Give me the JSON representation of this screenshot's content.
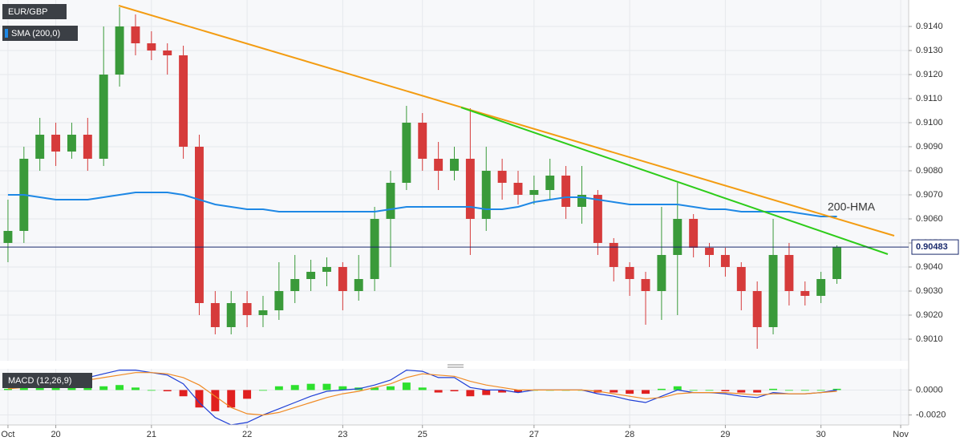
{
  "chart_data": [
    {
      "type": "candlestick",
      "title": "EUR/GBP",
      "categories": [
        "Oct",
        null,
        null,
        "20",
        null,
        null,
        null,
        null,
        null,
        "21",
        null,
        null,
        null,
        null,
        null,
        "22",
        null,
        null,
        null,
        null,
        null,
        "23",
        null,
        null,
        null,
        null,
        "25",
        null,
        null,
        null,
        null,
        null,
        null,
        "27",
        null,
        null,
        null,
        null,
        null,
        "28",
        null,
        null,
        null,
        null,
        null,
        "29",
        null,
        null,
        null,
        null,
        null,
        "30",
        null,
        null,
        null,
        null,
        "Nov"
      ],
      "open": [
        0.905,
        0.9055,
        0.9085,
        0.9095,
        0.9088,
        0.9095,
        0.9085,
        0.912,
        0.914,
        0.9133,
        0.913,
        0.9128,
        0.909,
        0.9025,
        0.9015,
        0.9025,
        0.902,
        0.9022,
        0.903,
        0.9035,
        0.9038,
        0.904,
        0.903,
        0.9035,
        0.906,
        0.9075,
        0.91,
        0.9085,
        0.908,
        0.9085,
        0.906,
        0.908,
        0.9075,
        0.907,
        0.9072,
        0.9078,
        0.9065,
        0.907,
        0.905,
        0.904,
        0.9035,
        0.903,
        0.9045,
        0.906,
        0.9048,
        0.9045,
        0.904,
        0.903,
        0.9015,
        0.9045,
        0.903,
        0.9028,
        0.9035,
        null,
        null,
        null,
        null
      ],
      "high": [
        0.9068,
        0.909,
        0.9102,
        0.91,
        0.91,
        0.9102,
        0.914,
        0.9148,
        0.9145,
        0.9138,
        0.9133,
        0.9132,
        0.9095,
        0.903,
        0.903,
        0.903,
        0.9028,
        0.9042,
        0.9045,
        0.9043,
        0.9044,
        0.9042,
        0.9045,
        0.9065,
        0.908,
        0.9107,
        0.9104,
        0.9092,
        0.909,
        0.9106,
        0.909,
        0.9085,
        0.908,
        0.9078,
        0.9085,
        0.9082,
        0.9082,
        0.9072,
        0.9052,
        0.9042,
        0.9038,
        0.9065,
        0.9075,
        0.9062,
        0.905,
        0.9048,
        0.9042,
        0.9034,
        0.906,
        0.905,
        0.9034,
        0.9038,
        0.9049,
        null,
        null,
        null,
        null
      ],
      "low": [
        0.9042,
        0.905,
        0.908,
        0.9082,
        0.9085,
        0.908,
        0.9082,
        0.9115,
        0.9128,
        0.9126,
        0.912,
        0.9085,
        0.902,
        0.9012,
        0.9012,
        0.9015,
        0.9015,
        0.9018,
        0.9025,
        0.903,
        0.9032,
        0.9022,
        0.9026,
        0.903,
        0.904,
        0.9072,
        0.908,
        0.9072,
        0.9076,
        0.9045,
        0.9055,
        0.9068,
        0.9066,
        0.9066,
        0.9068,
        0.906,
        0.9058,
        0.9045,
        0.9034,
        0.9028,
        0.9016,
        0.9018,
        0.902,
        0.9044,
        0.904,
        0.9036,
        0.9022,
        0.9006,
        0.9012,
        0.9024,
        0.9024,
        0.9025,
        0.9033,
        null,
        null,
        null,
        null
      ],
      "close": [
        0.9055,
        0.9085,
        0.9095,
        0.9088,
        0.9095,
        0.9085,
        0.912,
        0.914,
        0.9133,
        0.913,
        0.9128,
        0.909,
        0.9025,
        0.9015,
        0.9025,
        0.902,
        0.9022,
        0.903,
        0.9035,
        0.9038,
        0.904,
        0.903,
        0.9035,
        0.906,
        0.9075,
        0.91,
        0.9085,
        0.908,
        0.9085,
        0.906,
        0.908,
        0.9075,
        0.907,
        0.9072,
        0.9078,
        0.9065,
        0.907,
        0.905,
        0.904,
        0.9035,
        0.903,
        0.9045,
        0.906,
        0.9048,
        0.9045,
        0.904,
        0.903,
        0.9015,
        0.9045,
        0.903,
        0.9028,
        0.9035,
        0.90483,
        null,
        null,
        null,
        null
      ],
      "up_color": "#3a9a3a",
      "down_color": "#d63b3b",
      "series": [
        {
          "name": "SMA (200,0)",
          "color": "#1e88e5",
          "values": [
            0.907,
            0.907,
            0.9069,
            0.9068,
            0.9068,
            0.9068,
            0.9069,
            0.907,
            0.9071,
            0.9071,
            0.9071,
            0.907,
            0.9068,
            0.9066,
            0.9065,
            0.9064,
            0.9064,
            0.9063,
            0.9063,
            0.9063,
            0.9063,
            0.9063,
            0.9063,
            0.9063,
            0.9064,
            0.9065,
            0.9065,
            0.9065,
            0.9065,
            0.9065,
            0.9064,
            0.9064,
            0.9065,
            0.9067,
            0.9068,
            0.9069,
            0.9069,
            0.9068,
            0.9067,
            0.9066,
            0.9066,
            0.9066,
            0.9066,
            0.9065,
            0.9064,
            0.9064,
            0.9063,
            0.9063,
            0.9063,
            0.9063,
            0.9062,
            0.9061,
            0.9061,
            null,
            null,
            null,
            null
          ]
        }
      ],
      "annotations": [
        "200-HMA"
      ],
      "current_price": 0.90483,
      "ylim": [
        0.9001,
        0.9151
      ],
      "yticks": [
        {
          "value": 0.901,
          "label": "0.9010"
        },
        {
          "value": 0.902,
          "label": "0.9020"
        },
        {
          "value": 0.903,
          "label": "0.9030"
        },
        {
          "value": 0.904,
          "label": "0.9040"
        },
        {
          "value": 0.905,
          "label": "0.9050"
        },
        {
          "value": 0.906,
          "label": "0.9060"
        },
        {
          "value": 0.907,
          "label": "0.9070"
        },
        {
          "value": 0.908,
          "label": "0.9080"
        },
        {
          "value": 0.909,
          "label": "0.9090"
        },
        {
          "value": 0.91,
          "label": "0.9100"
        },
        {
          "value": 0.911,
          "label": "0.9110"
        },
        {
          "value": 0.912,
          "label": "0.9120"
        },
        {
          "value": 0.913,
          "label": "0.9130"
        },
        {
          "value": 0.914,
          "label": "0.9140"
        }
      ],
      "grid": true
    },
    {
      "type": "macd",
      "title": "MACD (12,26,9)",
      "macd": {
        "color": "#1f3fd6",
        "values": [
          0.0002,
          0.0004,
          0.0006,
          0.0008,
          0.0009,
          0.001,
          0.0013,
          0.0016,
          0.0016,
          0.0014,
          0.0012,
          0.0005,
          -0.001,
          -0.0022,
          -0.0028,
          -0.0026,
          -0.002,
          -0.0015,
          -0.001,
          -0.0005,
          -0.0001,
          0,
          0.0001,
          0.0004,
          0.0008,
          0.0016,
          0.0015,
          0.001,
          0.001,
          0.0002,
          0,
          0,
          -0.0002,
          0,
          0,
          0,
          0,
          -0.0003,
          -0.0005,
          -0.0008,
          -0.001,
          -0.0005,
          0,
          -0.0002,
          -0.0002,
          -0.0003,
          -0.0005,
          -0.0006,
          -0.0002,
          -0.0003,
          -0.0003,
          -0.0002,
          0,
          null,
          null,
          null,
          null
        ]
      },
      "signal": {
        "color": "#f08a24",
        "values": [
          0.0001,
          0.0002,
          0.0004,
          0.0006,
          0.0007,
          0.0008,
          0.001,
          0.0012,
          0.0014,
          0.0014,
          0.0013,
          0.001,
          0.0004,
          -0.0005,
          -0.0014,
          -0.0019,
          -0.002,
          -0.0018,
          -0.0014,
          -0.001,
          -0.0006,
          -0.0003,
          -0.0001,
          0.0002,
          0.0005,
          0.001,
          0.0013,
          0.0012,
          0.0011,
          0.0007,
          0.0004,
          0.0002,
          0,
          0,
          0,
          0,
          0,
          -0.0001,
          -0.0003,
          -0.0005,
          -0.0007,
          -0.0006,
          -0.0003,
          -0.0002,
          -0.0002,
          -0.0002,
          -0.0003,
          -0.0004,
          -0.0003,
          -0.0003,
          -0.0003,
          -0.0002,
          -0.0001,
          null,
          null,
          null,
          null
        ]
      },
      "histogram": {
        "up_color": "#2ee02e",
        "down_color": "#e02020",
        "values": [
          0.0001,
          0.0002,
          0.0002,
          0.0002,
          0.0002,
          0.0002,
          0.0003,
          0.0004,
          0.0002,
          0,
          -0.0001,
          -0.0005,
          -0.0014,
          -0.0017,
          -0.0014,
          -0.0007,
          0,
          0.0003,
          0.0004,
          0.0005,
          0.0005,
          0.0003,
          0.0002,
          0.0002,
          0.0003,
          0.0006,
          0.0002,
          -0.0002,
          -0.0001,
          -0.0005,
          -0.0004,
          -0.0002,
          -0.0002,
          0,
          0,
          0,
          0,
          -0.0002,
          -0.0002,
          -0.0003,
          -0.0003,
          0.0001,
          0.0003,
          0,
          0,
          -0.0001,
          -0.0002,
          -0.0002,
          0.0001,
          0,
          0,
          0,
          0.0001,
          null,
          null,
          null,
          null
        ]
      },
      "ylim": [
        -0.0028,
        0.0017
      ],
      "yticks": [
        {
          "value": 0,
          "label": "0.0000"
        },
        {
          "value": -0.002,
          "label": "-0.0020"
        }
      ]
    }
  ]
}
